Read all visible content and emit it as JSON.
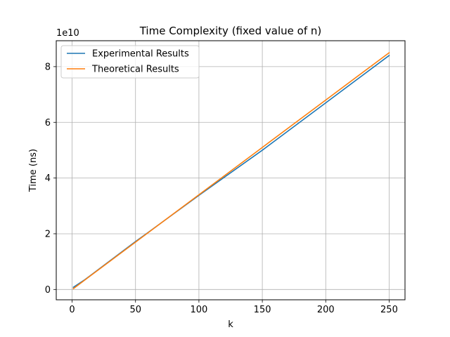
{
  "chart_data": {
    "type": "line",
    "title": "Time Complexity (fixed value of n)",
    "xlabel": "k",
    "ylabel": "Time (ns)",
    "y_offset_label": "1e10",
    "xlim": [
      -12.5,
      262.5
    ],
    "ylim": [
      -0.37,
      8.93
    ],
    "y_scale_factor": 10000000000,
    "xticks": [
      0,
      50,
      100,
      150,
      200,
      250
    ],
    "yticks": [
      0,
      2,
      4,
      6,
      8
    ],
    "grid": true,
    "legend_position": "upper left",
    "series": [
      {
        "name": "Experimental Results",
        "color": "#1f77b4",
        "x": [
          1,
          10,
          50,
          60,
          100,
          150,
          200,
          250
        ],
        "y": [
          0.08,
          0.35,
          1.72,
          2.05,
          3.38,
          5.0,
          6.7,
          8.4
        ]
      },
      {
        "name": "Theoretical Results",
        "color": "#ff7f0e",
        "x": [
          1,
          10,
          50,
          60,
          100,
          150,
          200,
          250
        ],
        "y": [
          0.03,
          0.34,
          1.7,
          2.04,
          3.4,
          5.1,
          6.8,
          8.5
        ]
      }
    ]
  }
}
